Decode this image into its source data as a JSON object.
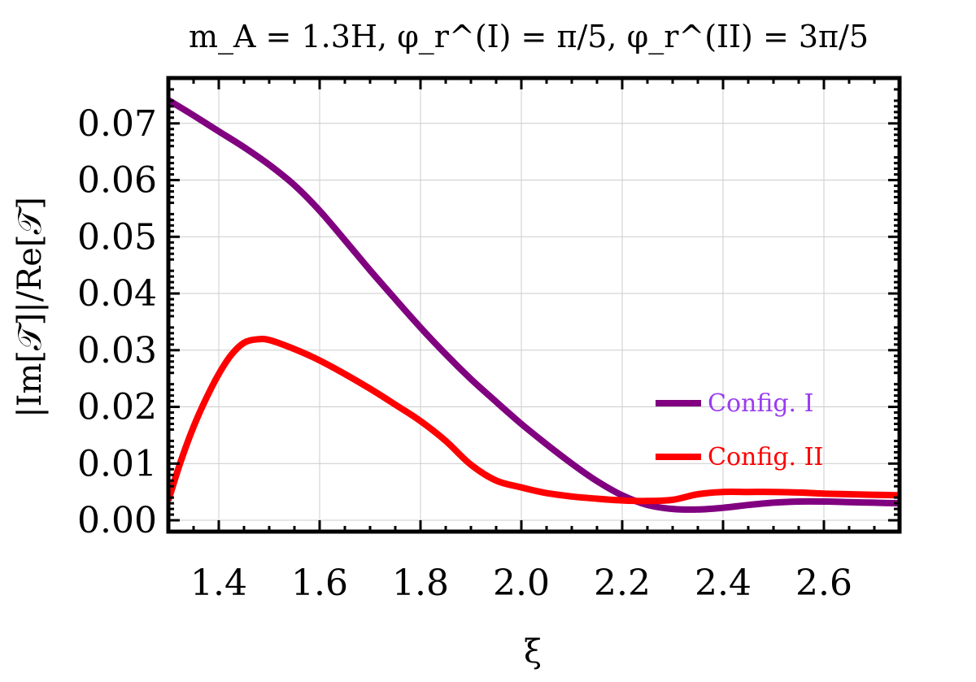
{
  "chart_data": {
    "type": "line",
    "title": "m_A = 1.3H, φ_r^(I) = π/5, φ_r^(II) = 3π/5",
    "xlabel": "ξ",
    "ylabel": "|Im[𝒯]|/Re[𝒯]",
    "xlim": [
      1.3,
      2.75
    ],
    "ylim": [
      -0.002,
      0.078
    ],
    "x_ticks": [
      "1.4",
      "1.6",
      "1.8",
      "2.0",
      "2.2",
      "2.4",
      "2.6"
    ],
    "y_ticks": [
      "0.00",
      "0.01",
      "0.02",
      "0.03",
      "0.04",
      "0.05",
      "0.06",
      "0.07"
    ],
    "grid": true,
    "legend_position": "lower-right",
    "series": [
      {
        "name": "Config. I",
        "color": "#800080",
        "legend_color": "#9a3cf0",
        "x": [
          1.3,
          1.35,
          1.4,
          1.45,
          1.5,
          1.55,
          1.6,
          1.65,
          1.7,
          1.75,
          1.8,
          1.85,
          1.9,
          1.95,
          2.0,
          2.05,
          2.1,
          2.15,
          2.2,
          2.25,
          2.3,
          2.35,
          2.4,
          2.45,
          2.5,
          2.55,
          2.6,
          2.65,
          2.7,
          2.75
        ],
        "y": [
          0.0741,
          0.0714,
          0.0686,
          0.0658,
          0.0627,
          0.0591,
          0.0546,
          0.0494,
          0.0441,
          0.039,
          0.034,
          0.0293,
          0.0249,
          0.0209,
          0.017,
          0.0134,
          0.01,
          0.0069,
          0.0044,
          0.0027,
          0.002,
          0.0019,
          0.0022,
          0.0027,
          0.0031,
          0.0033,
          0.0033,
          0.0032,
          0.0031,
          0.003
        ]
      },
      {
        "name": "Config. II",
        "color": "#ff0000",
        "legend_color": "#ff0000",
        "x": [
          1.3,
          1.325,
          1.35,
          1.375,
          1.4,
          1.425,
          1.45,
          1.475,
          1.5,
          1.55,
          1.6,
          1.65,
          1.7,
          1.75,
          1.8,
          1.85,
          1.9,
          1.95,
          2.0,
          2.05,
          2.1,
          2.15,
          2.2,
          2.25,
          2.3,
          2.35,
          2.4,
          2.45,
          2.5,
          2.55,
          2.6,
          2.65,
          2.7,
          2.75
        ],
        "y": [
          0.0035,
          0.0105,
          0.0165,
          0.0215,
          0.0258,
          0.0292,
          0.0313,
          0.0319,
          0.0318,
          0.0302,
          0.0282,
          0.0258,
          0.0232,
          0.0204,
          0.0175,
          0.014,
          0.0098,
          0.007,
          0.0058,
          0.0048,
          0.0042,
          0.0038,
          0.0035,
          0.0034,
          0.0036,
          0.0046,
          0.005,
          0.005,
          0.005,
          0.0049,
          0.0047,
          0.0046,
          0.0045,
          0.0044
        ]
      }
    ]
  }
}
